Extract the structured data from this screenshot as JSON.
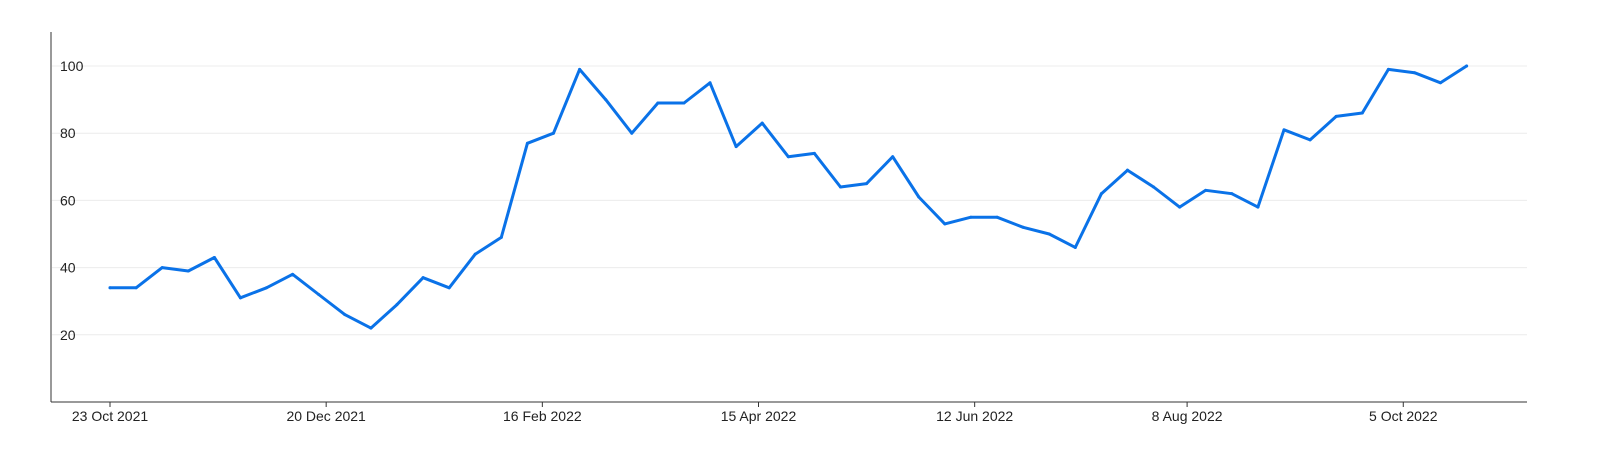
{
  "chart_data": {
    "type": "line",
    "title": "",
    "xlabel": "",
    "ylabel": "",
    "ylim": [
      0,
      110
    ],
    "y_ticks": [
      20,
      40,
      60,
      80,
      100
    ],
    "x_ticks": [
      {
        "date": "2021-10-23",
        "label": "23 Oct 2021"
      },
      {
        "date": "2021-12-20",
        "label": "20 Dec 2021"
      },
      {
        "date": "2022-02-16",
        "label": "16 Feb 2022"
      },
      {
        "date": "2022-04-15",
        "label": "15 Apr 2022"
      },
      {
        "date": "2022-06-12",
        "label": "12 Jun 2022"
      },
      {
        "date": "2022-08-08",
        "label": "8 Aug 2022"
      },
      {
        "date": "2022-10-05",
        "label": "5 Oct 2022"
      }
    ],
    "grid": "horizontal",
    "line_color": "#0a72e8",
    "x": [
      "2021-10-23",
      "2021-10-30",
      "2021-11-06",
      "2021-11-13",
      "2021-11-20",
      "2021-11-27",
      "2021-12-04",
      "2021-12-11",
      "2021-12-18",
      "2021-12-25",
      "2022-01-01",
      "2022-01-08",
      "2022-01-15",
      "2022-01-22",
      "2022-01-29",
      "2022-02-05",
      "2022-02-12",
      "2022-02-19",
      "2022-02-26",
      "2022-03-05",
      "2022-03-12",
      "2022-03-19",
      "2022-03-26",
      "2022-04-02",
      "2022-04-09",
      "2022-04-16",
      "2022-04-23",
      "2022-04-30",
      "2022-05-07",
      "2022-05-14",
      "2022-05-21",
      "2022-05-28",
      "2022-06-04",
      "2022-06-11",
      "2022-06-18",
      "2022-06-25",
      "2022-07-02",
      "2022-07-09",
      "2022-07-16",
      "2022-07-23",
      "2022-07-30",
      "2022-08-06",
      "2022-08-13",
      "2022-08-20",
      "2022-08-27",
      "2022-09-03",
      "2022-09-10",
      "2022-09-17",
      "2022-09-24",
      "2022-10-01",
      "2022-10-08",
      "2022-10-15",
      "2022-10-22"
    ],
    "values": [
      34,
      34,
      40,
      39,
      43,
      31,
      34,
      38,
      32,
      26,
      22,
      29,
      37,
      34,
      44,
      49,
      77,
      80,
      99,
      90,
      80,
      89,
      89,
      95,
      76,
      83,
      73,
      74,
      64,
      65,
      73,
      61,
      53,
      55,
      55,
      52,
      50,
      46,
      62,
      69,
      64,
      58,
      63,
      62,
      58,
      81,
      78,
      85,
      86,
      99,
      98,
      95,
      100
    ]
  }
}
